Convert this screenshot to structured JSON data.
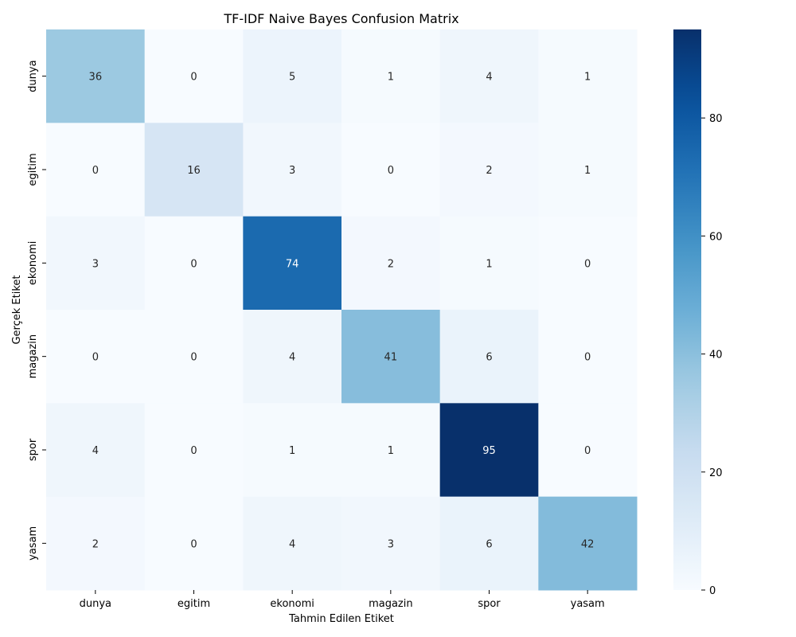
{
  "chart_data": {
    "type": "heatmap",
    "title": "TF-IDF Naive Bayes Confusion Matrix",
    "xlabel": "Tahmin Edilen Etiket",
    "ylabel": "Gerçek Etiket",
    "x_categories": [
      "dunya",
      "egitim",
      "ekonomi",
      "magazin",
      "spor",
      "yasam"
    ],
    "y_categories": [
      "dunya",
      "egitim",
      "ekonomi",
      "magazin",
      "spor",
      "yasam"
    ],
    "values": [
      [
        36,
        0,
        5,
        1,
        4,
        1
      ],
      [
        0,
        16,
        3,
        0,
        2,
        1
      ],
      [
        3,
        0,
        74,
        2,
        1,
        0
      ],
      [
        0,
        0,
        4,
        41,
        6,
        0
      ],
      [
        4,
        0,
        1,
        1,
        95,
        0
      ],
      [
        2,
        0,
        4,
        3,
        6,
        42
      ]
    ],
    "colorscale": "Blues",
    "vmin": 0,
    "vmax": 95,
    "colorbar_ticks": [
      0,
      20,
      40,
      60,
      80
    ]
  }
}
